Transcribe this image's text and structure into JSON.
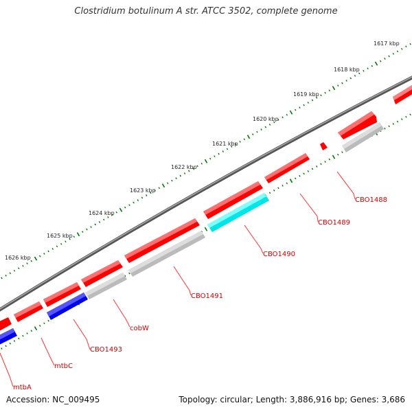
{
  "title": "Clostridium botulinum A str. ATCC 3502, complete genome",
  "accession": "Accession: NC_009495",
  "topology": "Topology: circular; Length: 3,886,916 bp; Genes: 3,686",
  "colors": {
    "backbone": "#808080",
    "gene_red": "#ff0000",
    "gene_grey": "#bbbbbb",
    "gene_cyan": "#00e5e5",
    "gene_blue": "#0000ee",
    "ticks": "#007700",
    "label": "#d40000"
  },
  "scale_labels": [
    "1617 kbp",
    "1618 kbp",
    "1619 kbp",
    "1620 kbp",
    "1621 kbp",
    "1622 kbp",
    "1623 kbp",
    "1624 kbp",
    "1625 kbp",
    "1626 kbp"
  ],
  "gene_labels": [
    "CBO1488",
    "CBO1489",
    "CBO1490",
    "CBO1491",
    "cobW",
    "CBO1493",
    "mtbC",
    "mtbA"
  ]
}
